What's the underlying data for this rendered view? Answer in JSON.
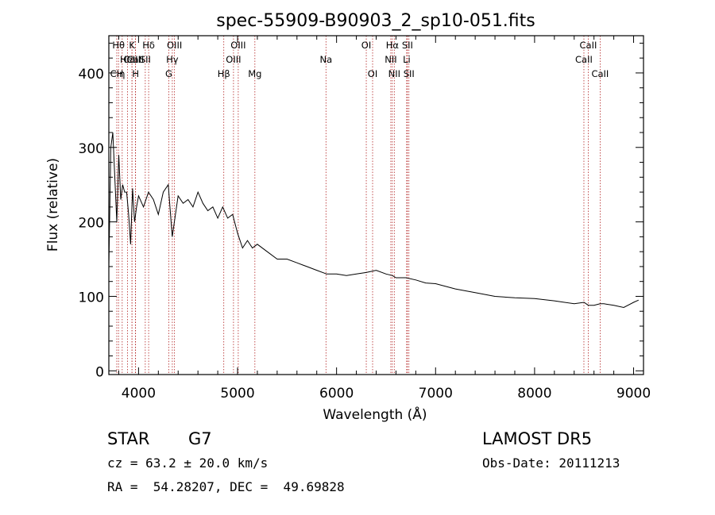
{
  "chart_data": {
    "type": "line",
    "title": "spec-55909-B90903_2_sp10-051.fits",
    "xlabel": "Wavelength (Å)",
    "ylabel": "Flux (relative)",
    "xlim": [
      3700,
      9100
    ],
    "ylim": [
      -5,
      450
    ],
    "x_ticks": [
      4000,
      5000,
      6000,
      7000,
      8000,
      9000
    ],
    "y_ticks": [
      0,
      100,
      200,
      300,
      400
    ],
    "grid": false,
    "series": [
      {
        "color": "#000000",
        "x": [
          3700,
          3720,
          3740,
          3760,
          3780,
          3800,
          3820,
          3840,
          3860,
          3880,
          3900,
          3920,
          3940,
          3960,
          3980,
          4000,
          4050,
          4100,
          4150,
          4200,
          4250,
          4300,
          4340,
          4400,
          4450,
          4500,
          4550,
          4600,
          4650,
          4700,
          4750,
          4800,
          4850,
          4900,
          4950,
          5000,
          5050,
          5100,
          5150,
          5200,
          5300,
          5400,
          5500,
          5600,
          5700,
          5800,
          5900,
          6000,
          6100,
          6200,
          6300,
          6400,
          6500,
          6563,
          6600,
          6700,
          6800,
          6900,
          7000,
          7200,
          7400,
          7600,
          7800,
          8000,
          8200,
          8400,
          8500,
          8542,
          8600,
          8662,
          8700,
          8800,
          8900,
          9000,
          9050
        ],
        "y": [
          140,
          300,
          320,
          260,
          200,
          290,
          230,
          250,
          240,
          240,
          210,
          170,
          245,
          200,
          220,
          235,
          220,
          240,
          230,
          210,
          240,
          250,
          180,
          235,
          225,
          230,
          220,
          240,
          225,
          215,
          220,
          205,
          220,
          205,
          210,
          185,
          165,
          175,
          165,
          170,
          160,
          150,
          150,
          145,
          140,
          135,
          130,
          130,
          128,
          130,
          132,
          135,
          130,
          128,
          125,
          125,
          122,
          118,
          117,
          110,
          105,
          100,
          98,
          97,
          94,
          90,
          92,
          88,
          88,
          90,
          90,
          88,
          85,
          92,
          95
        ]
      }
    ],
    "annotations": [
      {
        "label": "CaII",
        "x": 3934,
        "row": 2
      },
      {
        "label": "H",
        "x": 3970,
        "row": 3
      },
      {
        "label": "K",
        "x": 3934,
        "row": 1
      },
      {
        "label": "Hθ",
        "x": 3798,
        "row": 1
      },
      {
        "label": "CaII",
        "x": 3968,
        "row": 2
      },
      {
        "label": "CH",
        "x": 3780,
        "row": 3
      },
      {
        "label": "η",
        "x": 3835,
        "row": 3
      },
      {
        "label": "HeI",
        "x": 3889,
        "row": 2
      },
      {
        "label": "Hδ",
        "x": 4102,
        "row": 1
      },
      {
        "label": "SII",
        "x": 4068,
        "row": 2
      },
      {
        "label": "OIII",
        "x": 4363,
        "row": 1
      },
      {
        "label": "Hγ",
        "x": 4341,
        "row": 2
      },
      {
        "label": "G",
        "x": 4305,
        "row": 3
      },
      {
        "label": "OIII",
        "x": 5007,
        "row": 1
      },
      {
        "label": "OIII",
        "x": 4959,
        "row": 2
      },
      {
        "label": "Hβ",
        "x": 4861,
        "row": 3
      },
      {
        "label": "Mg",
        "x": 5175,
        "row": 3
      },
      {
        "label": "Na",
        "x": 5893,
        "row": 2
      },
      {
        "label": "OI",
        "x": 6300,
        "row": 1
      },
      {
        "label": "OI",
        "x": 6364,
        "row": 3
      },
      {
        "label": "Hα",
        "x": 6563,
        "row": 1
      },
      {
        "label": "NII",
        "x": 6548,
        "row": 2
      },
      {
        "label": "NII",
        "x": 6583,
        "row": 3
      },
      {
        "label": "SII",
        "x": 6716,
        "row": 1
      },
      {
        "label": "Li",
        "x": 6708,
        "row": 2
      },
      {
        "label": "SII",
        "x": 6731,
        "row": 3
      },
      {
        "label": "CaII",
        "x": 8542,
        "row": 1
      },
      {
        "label": "CaII",
        "x": 8498,
        "row": 2
      },
      {
        "label": "CaII",
        "x": 8662,
        "row": 3
      }
    ]
  },
  "info": {
    "object_class": "STAR",
    "subclass": "G7",
    "release": "LAMOST DR5",
    "cz": "cz = 63.2 ± 20.0 km/s",
    "obs_date": "Obs-Date: 20111213",
    "coords": "RA =  54.28207, DEC =  49.69828"
  }
}
